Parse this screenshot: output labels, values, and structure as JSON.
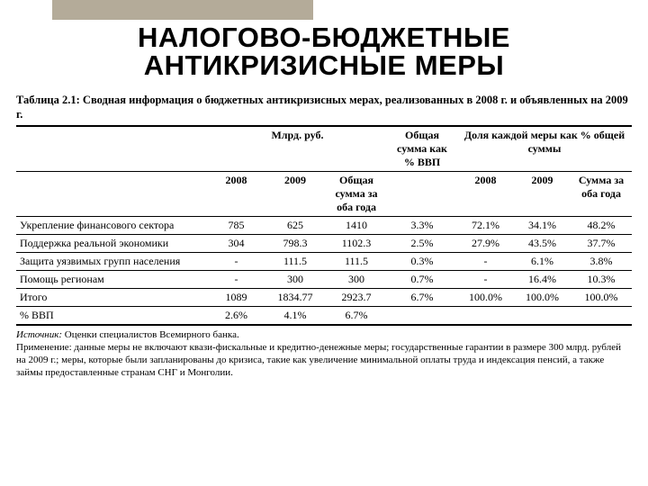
{
  "topbar_color": "#b4ab99",
  "title": "НАЛОГОВО-БЮДЖЕТНЫЕ АНТИКРИЗИСНЫЕ МЕРЫ",
  "caption": "Таблица 2.1: Сводная информация о бюджетных антикризисных мерах, реализованных в 2008 г. и объявленных на 2009 г.",
  "header_group": {
    "col_amounts": "Млрд. руб.",
    "col_gdp": "Общая сумма как % ВВП",
    "col_share": "Доля каждой меры как % общей суммы"
  },
  "header_cols": {
    "c2008": "2008",
    "c2009": "2009",
    "total": "Общая сумма за оба года",
    "share2008": "2008",
    "share2009": "2009",
    "share_total": "Сумма за оба года"
  },
  "rows": [
    {
      "label": "Укрепление финансового сектора",
      "a2008": "785",
      "a2009": "625",
      "atot": "1410",
      "gdp": "3.3%",
      "s2008": "72.1%",
      "s2009": "34.1%",
      "stot": "48.2%"
    },
    {
      "label": "Поддержка реальной экономики",
      "a2008": "304",
      "a2009": "798.3",
      "atot": "1102.3",
      "gdp": "2.5%",
      "s2008": "27.9%",
      "s2009": "43.5%",
      "stot": "37.7%"
    },
    {
      "label": "Защита уязвимых групп населения",
      "a2008": "-",
      "a2009": "111.5",
      "atot": "111.5",
      "gdp": "0.3%",
      "s2008": "-",
      "s2009": "6.1%",
      "stot": "3.8%"
    },
    {
      "label": "Помощь регионам",
      "a2008": "-",
      "a2009": "300",
      "atot": "300",
      "gdp": "0.7%",
      "s2008": "-",
      "s2009": "16.4%",
      "stot": "10.3%"
    },
    {
      "label": "Итого",
      "a2008": "1089",
      "a2009": "1834.77",
      "atot": "2923.7",
      "gdp": "6.7%",
      "s2008": "100.0%",
      "s2009": "100.0%",
      "stot": "100.0%"
    },
    {
      "label": "% ВВП",
      "a2008": "2.6%",
      "a2009": "4.1%",
      "atot": "6.7%",
      "gdp": "",
      "s2008": "",
      "s2009": "",
      "stot": ""
    }
  ],
  "source_label": "Источник:",
  "source_text": "Оценки специалистов Всемирного банка.",
  "note_text": "Применение: данные меры не включают квази-фискальные и кредитно-денежные меры; государственные гарантии в размере 300 млрд. рублей на 2009 г.; меры, которые были запланированы до кризиса, такие как увеличение минимальной оплаты труда и индексация пенсий, а также займы предоставленные странам СНГ и Монголии."
}
